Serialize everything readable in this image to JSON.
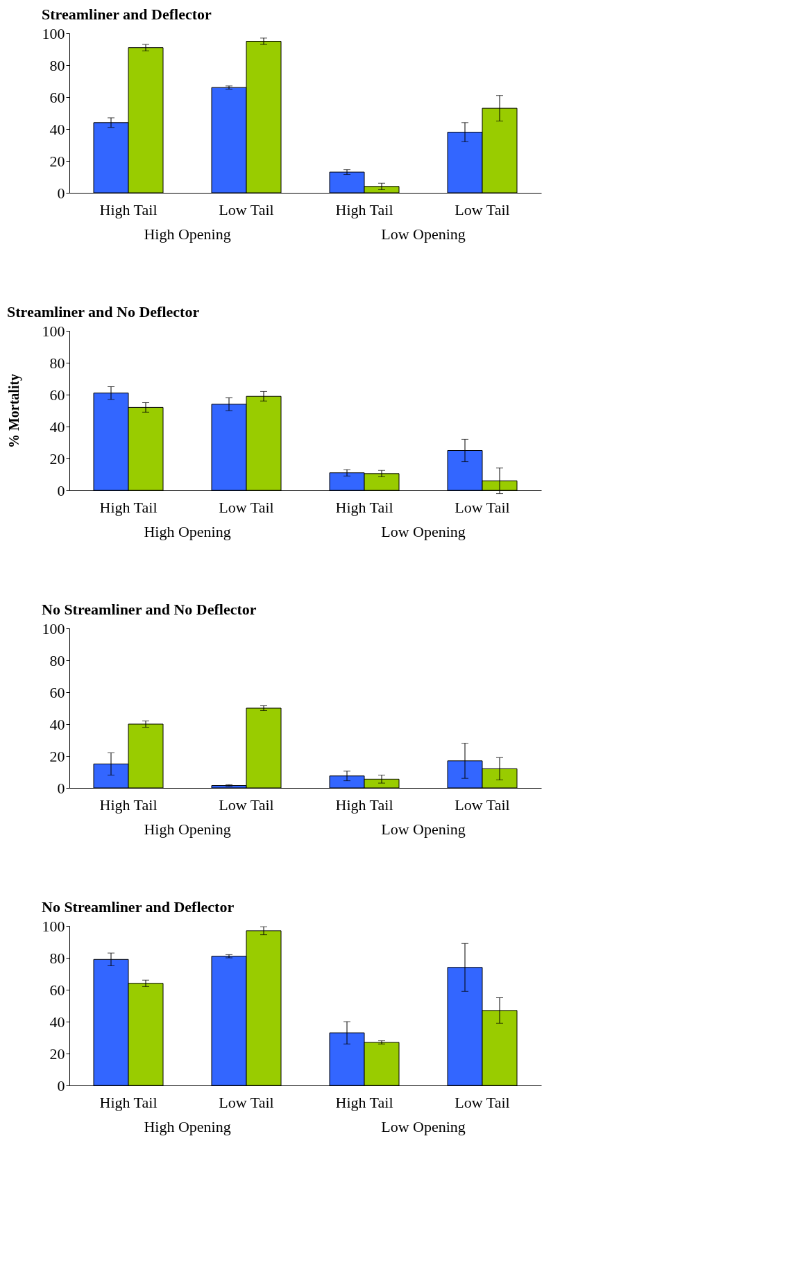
{
  "chart_data": [
    {
      "type": "bar",
      "title": "Streamliner and Deflector",
      "categories": [
        "High Tail",
        "Low Tail",
        "High Tail",
        "Low Tail"
      ],
      "annotations": [
        "High Opening",
        "Low Opening"
      ],
      "ylim": [
        0,
        100
      ],
      "yticks": [
        0,
        20,
        40,
        60,
        80,
        100
      ],
      "grid": false,
      "legend": false,
      "series": [
        {
          "color": "#3366ff",
          "values": [
            44,
            66,
            13,
            38
          ],
          "errors": [
            3,
            1,
            1.5,
            6
          ]
        },
        {
          "color": "#99cc00",
          "values": [
            91,
            95,
            4,
            53
          ],
          "errors": [
            2,
            2,
            2,
            8
          ]
        }
      ]
    },
    {
      "type": "bar",
      "title": "Streamliner and No Deflector",
      "ylabel": "% Mortality",
      "categories": [
        "High Tail",
        "Low Tail",
        "High Tail",
        "Low Tail"
      ],
      "annotations": [
        "High Opening",
        "Low Opening"
      ],
      "ylim": [
        0,
        100
      ],
      "yticks": [
        0,
        20,
        40,
        60,
        80,
        100
      ],
      "grid": false,
      "legend": false,
      "series": [
        {
          "color": "#3366ff",
          "values": [
            61,
            54,
            11,
            25
          ],
          "errors": [
            4,
            4,
            2,
            7
          ]
        },
        {
          "color": "#99cc00",
          "values": [
            52,
            59,
            10.5,
            6
          ],
          "errors": [
            3,
            3,
            2,
            8
          ]
        }
      ]
    },
    {
      "type": "bar",
      "title": "No Streamliner and No Deflector",
      "categories": [
        "High Tail",
        "Low Tail",
        "High Tail",
        "Low Tail"
      ],
      "annotations": [
        "High Opening",
        "Low Opening"
      ],
      "ylim": [
        0,
        100
      ],
      "yticks": [
        0,
        20,
        40,
        60,
        80,
        100
      ],
      "grid": false,
      "legend": false,
      "series": [
        {
          "color": "#3366ff",
          "values": [
            15,
            1.5,
            7.5,
            17
          ],
          "errors": [
            7,
            0.5,
            3,
            11
          ]
        },
        {
          "color": "#99cc00",
          "values": [
            40,
            50,
            5.5,
            12
          ],
          "errors": [
            2,
            1.5,
            2.5,
            7
          ]
        }
      ]
    },
    {
      "type": "bar",
      "title": "No Streamliner and Deflector",
      "categories": [
        "High Tail",
        "Low Tail",
        "High Tail",
        "Low Tail"
      ],
      "annotations": [
        "High Opening",
        "Low Opening"
      ],
      "ylim": [
        0,
        100
      ],
      "yticks": [
        0,
        20,
        40,
        60,
        80,
        100
      ],
      "grid": false,
      "legend": false,
      "series": [
        {
          "color": "#3366ff",
          "values": [
            79,
            81,
            33,
            74
          ],
          "errors": [
            4,
            1,
            7,
            15
          ]
        },
        {
          "color": "#99cc00",
          "values": [
            64,
            97,
            27,
            47
          ],
          "errors": [
            2,
            2.5,
            1,
            8
          ]
        }
      ]
    }
  ]
}
